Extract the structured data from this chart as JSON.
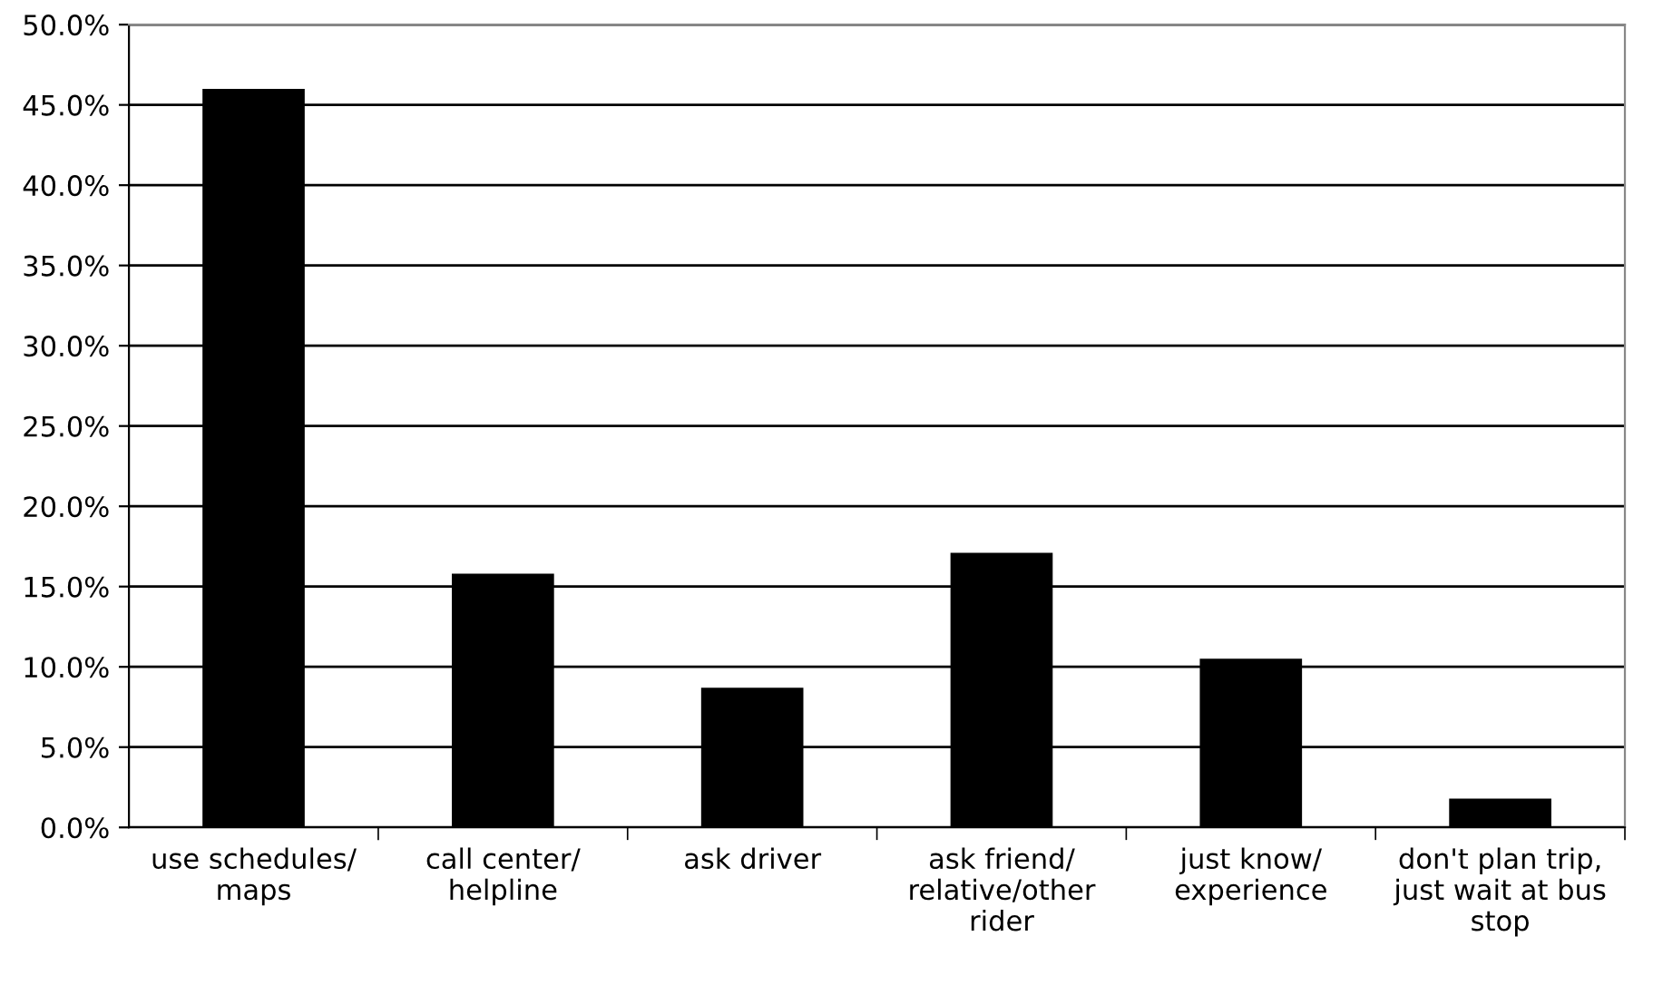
{
  "chart_data": {
    "type": "bar",
    "categories": [
      "use schedules/\nmaps",
      "call center/\nhelpline",
      "ask driver",
      "ask friend/\nrelative/other\nrider",
      "just know/\nexperience",
      "don't plan trip,\njust wait at bus\nstop"
    ],
    "values": [
      46.0,
      15.8,
      8.7,
      17.1,
      10.5,
      1.8
    ],
    "color": "#000000",
    "ylim": [
      0,
      50
    ],
    "yticks": [
      {
        "value": 0,
        "label": "0.0%"
      },
      {
        "value": 5,
        "label": "5.0%"
      },
      {
        "value": 10,
        "label": "10.0%"
      },
      {
        "value": 15,
        "label": "15.0%"
      },
      {
        "value": 20,
        "label": "20.0%"
      },
      {
        "value": 25,
        "label": "25.0%"
      },
      {
        "value": 30,
        "label": "30.0%"
      },
      {
        "value": 35,
        "label": "35.0%"
      },
      {
        "value": 40,
        "label": "40.0%"
      },
      {
        "value": 45,
        "label": "45.0%"
      },
      {
        "value": 50,
        "label": "50.0%"
      }
    ],
    "grid": "y"
  }
}
